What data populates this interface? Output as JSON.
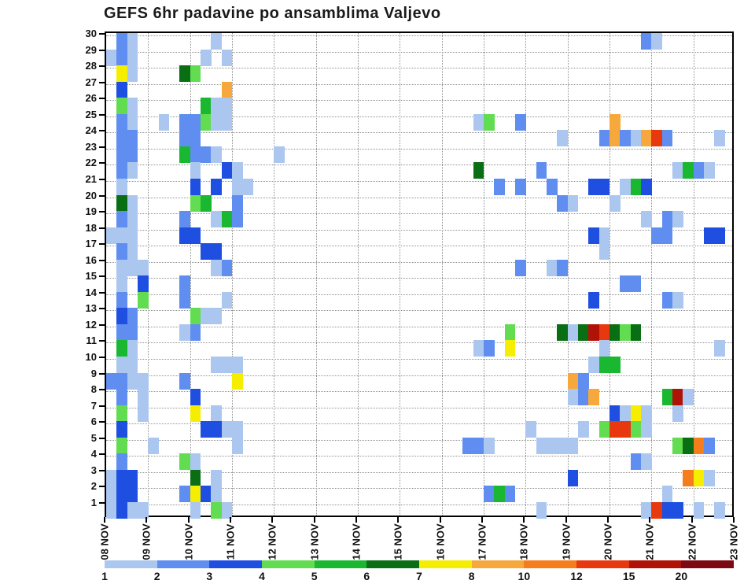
{
  "chart_data": {
    "type": "heatmap",
    "title": "GEFS 6hr padavine po ansamblima Valjevo",
    "subtitle": "",
    "x_axis": {
      "tick_labels": [
        "08 NOV",
        "09 NOV",
        "10 NOV",
        "11 NOV",
        "12 NOV",
        "13 NOV",
        "14 NOV",
        "15 NOV",
        "16 NOV",
        "17 NOV",
        "18 NOV",
        "19 NOV",
        "20 NOV",
        "21 NOV",
        "22 NOV",
        "23 NOV"
      ],
      "columns_per_day": 4,
      "total_columns": 60
    },
    "y_axis": {
      "tick_labels": [
        "30",
        "29",
        "28",
        "27",
        "26",
        "25",
        "24",
        "23",
        "22",
        "21",
        "20",
        "19",
        "18",
        "17",
        "16",
        "15",
        "14",
        "13",
        "12",
        "11",
        "10",
        "9",
        "8",
        "7",
        "6",
        "5",
        "4",
        "3",
        "2",
        "1"
      ]
    },
    "legend": {
      "labels": [
        "1",
        "2",
        "3",
        "4",
        "5",
        "6",
        "7",
        "8",
        "10",
        "12",
        "15",
        "20"
      ],
      "colors": [
        "#abc7f0",
        "#5f8ef0",
        "#1e4fe0",
        "#62dc50",
        "#1ab830",
        "#0a6e14",
        "#f6ee00",
        "#f6a83c",
        "#f67d1c",
        "#e8380e",
        "#b01208",
        "#7d0a12"
      ]
    },
    "palette": {
      "L": "#abc7f0",
      "M": "#5f8ef0",
      "S": "#1e4fe0",
      "G1": "#62dc50",
      "G2": "#1ab830",
      "G3": "#0a6e14",
      "Y": "#f6ee00",
      "O1": "#f6a83c",
      "O2": "#f67d1c",
      "R1": "#e8380e",
      "R2": "#b01208",
      "R3": "#7d0a12"
    },
    "cells": [
      [
        30,
        1,
        "M"
      ],
      [
        30,
        2,
        "L"
      ],
      [
        30,
        10,
        "L"
      ],
      [
        30,
        51,
        "M"
      ],
      [
        30,
        52,
        "L"
      ],
      [
        29,
        0,
        "L"
      ],
      [
        29,
        1,
        "M"
      ],
      [
        29,
        2,
        "L"
      ],
      [
        29,
        9,
        "L"
      ],
      [
        29,
        11,
        "L"
      ],
      [
        28,
        1,
        "Y"
      ],
      [
        28,
        2,
        "L"
      ],
      [
        28,
        7,
        "G3"
      ],
      [
        28,
        8,
        "G1"
      ],
      [
        27,
        1,
        "S"
      ],
      [
        27,
        11,
        "O1"
      ],
      [
        26,
        1,
        "G1"
      ],
      [
        26,
        2,
        "L"
      ],
      [
        26,
        9,
        "G2"
      ],
      [
        26,
        10,
        "L"
      ],
      [
        26,
        11,
        "L"
      ],
      [
        25,
        1,
        "M"
      ],
      [
        25,
        2,
        "L"
      ],
      [
        25,
        5,
        "L"
      ],
      [
        25,
        7,
        "M"
      ],
      [
        25,
        8,
        "M"
      ],
      [
        25,
        9,
        "G1"
      ],
      [
        25,
        10,
        "L"
      ],
      [
        25,
        11,
        "L"
      ],
      [
        25,
        35,
        "L"
      ],
      [
        25,
        36,
        "G1"
      ],
      [
        25,
        39,
        "M"
      ],
      [
        25,
        48,
        "O1"
      ],
      [
        24,
        1,
        "M"
      ],
      [
        24,
        2,
        "M"
      ],
      [
        24,
        7,
        "M"
      ],
      [
        24,
        8,
        "M"
      ],
      [
        24,
        43,
        "L"
      ],
      [
        24,
        47,
        "M"
      ],
      [
        24,
        48,
        "O1"
      ],
      [
        24,
        49,
        "M"
      ],
      [
        24,
        50,
        "L"
      ],
      [
        24,
        51,
        "O1"
      ],
      [
        24,
        52,
        "R1"
      ],
      [
        24,
        53,
        "M"
      ],
      [
        24,
        58,
        "L"
      ],
      [
        23,
        1,
        "M"
      ],
      [
        23,
        2,
        "M"
      ],
      [
        23,
        7,
        "G2"
      ],
      [
        23,
        8,
        "M"
      ],
      [
        23,
        9,
        "M"
      ],
      [
        23,
        10,
        "L"
      ],
      [
        23,
        16,
        "L"
      ],
      [
        22,
        1,
        "M"
      ],
      [
        22,
        2,
        "L"
      ],
      [
        22,
        8,
        "L"
      ],
      [
        22,
        11,
        "S"
      ],
      [
        22,
        12,
        "L"
      ],
      [
        22,
        35,
        "G3"
      ],
      [
        22,
        41,
        "M"
      ],
      [
        22,
        54,
        "L"
      ],
      [
        22,
        55,
        "G2"
      ],
      [
        22,
        56,
        "M"
      ],
      [
        22,
        57,
        "L"
      ],
      [
        21,
        1,
        "L"
      ],
      [
        21,
        8,
        "S"
      ],
      [
        21,
        10,
        "S"
      ],
      [
        21,
        12,
        "L"
      ],
      [
        21,
        13,
        "L"
      ],
      [
        21,
        37,
        "M"
      ],
      [
        21,
        39,
        "M"
      ],
      [
        21,
        42,
        "M"
      ],
      [
        21,
        46,
        "S"
      ],
      [
        21,
        47,
        "S"
      ],
      [
        21,
        49,
        "L"
      ],
      [
        21,
        50,
        "G2"
      ],
      [
        21,
        51,
        "S"
      ],
      [
        20,
        1,
        "G3"
      ],
      [
        20,
        2,
        "L"
      ],
      [
        20,
        8,
        "G1"
      ],
      [
        20,
        9,
        "G2"
      ],
      [
        20,
        12,
        "M"
      ],
      [
        20,
        43,
        "M"
      ],
      [
        20,
        44,
        "L"
      ],
      [
        20,
        48,
        "L"
      ],
      [
        19,
        1,
        "M"
      ],
      [
        19,
        2,
        "L"
      ],
      [
        19,
        7,
        "M"
      ],
      [
        19,
        10,
        "L"
      ],
      [
        19,
        11,
        "G2"
      ],
      [
        19,
        12,
        "M"
      ],
      [
        19,
        51,
        "L"
      ],
      [
        19,
        53,
        "M"
      ],
      [
        19,
        54,
        "L"
      ],
      [
        18,
        0,
        "L"
      ],
      [
        18,
        1,
        "L"
      ],
      [
        18,
        2,
        "L"
      ],
      [
        18,
        7,
        "S"
      ],
      [
        18,
        8,
        "S"
      ],
      [
        18,
        46,
        "S"
      ],
      [
        18,
        47,
        "L"
      ],
      [
        18,
        52,
        "M"
      ],
      [
        18,
        53,
        "M"
      ],
      [
        18,
        57,
        "S"
      ],
      [
        18,
        58,
        "S"
      ],
      [
        17,
        1,
        "M"
      ],
      [
        17,
        2,
        "L"
      ],
      [
        17,
        9,
        "S"
      ],
      [
        17,
        10,
        "S"
      ],
      [
        17,
        47,
        "L"
      ],
      [
        16,
        1,
        "L"
      ],
      [
        16,
        2,
        "L"
      ],
      [
        16,
        3,
        "L"
      ],
      [
        16,
        10,
        "L"
      ],
      [
        16,
        11,
        "M"
      ],
      [
        16,
        39,
        "M"
      ],
      [
        16,
        42,
        "L"
      ],
      [
        16,
        43,
        "M"
      ],
      [
        15,
        1,
        "L"
      ],
      [
        15,
        3,
        "S"
      ],
      [
        15,
        7,
        "M"
      ],
      [
        15,
        49,
        "M"
      ],
      [
        15,
        50,
        "M"
      ],
      [
        14,
        1,
        "M"
      ],
      [
        14,
        3,
        "G1"
      ],
      [
        14,
        7,
        "M"
      ],
      [
        14,
        11,
        "L"
      ],
      [
        14,
        46,
        "S"
      ],
      [
        14,
        53,
        "M"
      ],
      [
        14,
        54,
        "L"
      ],
      [
        13,
        1,
        "S"
      ],
      [
        13,
        2,
        "M"
      ],
      [
        13,
        8,
        "G1"
      ],
      [
        13,
        9,
        "L"
      ],
      [
        13,
        10,
        "L"
      ],
      [
        12,
        1,
        "M"
      ],
      [
        12,
        2,
        "M"
      ],
      [
        12,
        7,
        "L"
      ],
      [
        12,
        8,
        "M"
      ],
      [
        12,
        38,
        "G1"
      ],
      [
        12,
        43,
        "G3"
      ],
      [
        12,
        44,
        "L"
      ],
      [
        12,
        45,
        "G3"
      ],
      [
        12,
        46,
        "R2"
      ],
      [
        12,
        47,
        "R1"
      ],
      [
        12,
        48,
        "G3"
      ],
      [
        12,
        49,
        "G1"
      ],
      [
        12,
        50,
        "G3"
      ],
      [
        11,
        1,
        "G2"
      ],
      [
        11,
        2,
        "L"
      ],
      [
        11,
        35,
        "L"
      ],
      [
        11,
        36,
        "M"
      ],
      [
        11,
        38,
        "Y"
      ],
      [
        11,
        47,
        "L"
      ],
      [
        11,
        58,
        "L"
      ],
      [
        10,
        1,
        "L"
      ],
      [
        10,
        2,
        "L"
      ],
      [
        10,
        10,
        "L"
      ],
      [
        10,
        11,
        "L"
      ],
      [
        10,
        12,
        "L"
      ],
      [
        10,
        46,
        "L"
      ],
      [
        10,
        47,
        "G2"
      ],
      [
        10,
        48,
        "G2"
      ],
      [
        9,
        0,
        "M"
      ],
      [
        9,
        1,
        "M"
      ],
      [
        9,
        2,
        "L"
      ],
      [
        9,
        3,
        "L"
      ],
      [
        9,
        7,
        "M"
      ],
      [
        9,
        12,
        "Y"
      ],
      [
        9,
        44,
        "O1"
      ],
      [
        9,
        45,
        "M"
      ],
      [
        8,
        1,
        "M"
      ],
      [
        8,
        3,
        "L"
      ],
      [
        8,
        8,
        "S"
      ],
      [
        8,
        44,
        "L"
      ],
      [
        8,
        45,
        "M"
      ],
      [
        8,
        46,
        "O1"
      ],
      [
        8,
        53,
        "G2"
      ],
      [
        8,
        54,
        "R2"
      ],
      [
        8,
        55,
        "L"
      ],
      [
        7,
        1,
        "G1"
      ],
      [
        7,
        3,
        "L"
      ],
      [
        7,
        8,
        "Y"
      ],
      [
        7,
        10,
        "L"
      ],
      [
        7,
        48,
        "S"
      ],
      [
        7,
        49,
        "L"
      ],
      [
        7,
        50,
        "Y"
      ],
      [
        7,
        51,
        "L"
      ],
      [
        7,
        54,
        "L"
      ],
      [
        6,
        1,
        "S"
      ],
      [
        6,
        9,
        "S"
      ],
      [
        6,
        10,
        "S"
      ],
      [
        6,
        11,
        "L"
      ],
      [
        6,
        12,
        "L"
      ],
      [
        6,
        40,
        "L"
      ],
      [
        6,
        45,
        "L"
      ],
      [
        6,
        47,
        "G1"
      ],
      [
        6,
        48,
        "R1"
      ],
      [
        6,
        49,
        "R1"
      ],
      [
        6,
        50,
        "G1"
      ],
      [
        6,
        51,
        "L"
      ],
      [
        5,
        1,
        "G1"
      ],
      [
        5,
        4,
        "L"
      ],
      [
        5,
        12,
        "L"
      ],
      [
        5,
        34,
        "M"
      ],
      [
        5,
        35,
        "M"
      ],
      [
        5,
        36,
        "L"
      ],
      [
        5,
        41,
        "L"
      ],
      [
        5,
        42,
        "L"
      ],
      [
        5,
        43,
        "L"
      ],
      [
        5,
        44,
        "L"
      ],
      [
        5,
        54,
        "G1"
      ],
      [
        5,
        55,
        "G3"
      ],
      [
        5,
        56,
        "O2"
      ],
      [
        5,
        57,
        "M"
      ],
      [
        4,
        1,
        "M"
      ],
      [
        4,
        7,
        "G1"
      ],
      [
        4,
        8,
        "L"
      ],
      [
        4,
        50,
        "M"
      ],
      [
        4,
        51,
        "L"
      ],
      [
        3,
        0,
        "L"
      ],
      [
        3,
        1,
        "S"
      ],
      [
        3,
        2,
        "S"
      ],
      [
        3,
        8,
        "G3"
      ],
      [
        3,
        10,
        "L"
      ],
      [
        3,
        44,
        "S"
      ],
      [
        3,
        55,
        "O2"
      ],
      [
        3,
        56,
        "Y"
      ],
      [
        3,
        57,
        "L"
      ],
      [
        2,
        0,
        "L"
      ],
      [
        2,
        1,
        "S"
      ],
      [
        2,
        2,
        "S"
      ],
      [
        2,
        7,
        "M"
      ],
      [
        2,
        8,
        "Y"
      ],
      [
        2,
        9,
        "S"
      ],
      [
        2,
        10,
        "L"
      ],
      [
        2,
        36,
        "M"
      ],
      [
        2,
        37,
        "G2"
      ],
      [
        2,
        38,
        "M"
      ],
      [
        2,
        53,
        "L"
      ],
      [
        1,
        0,
        "L"
      ],
      [
        1,
        1,
        "S"
      ],
      [
        1,
        2,
        "L"
      ],
      [
        1,
        3,
        "L"
      ],
      [
        1,
        8,
        "L"
      ],
      [
        1,
        10,
        "G1"
      ],
      [
        1,
        11,
        "L"
      ],
      [
        1,
        41,
        "L"
      ],
      [
        1,
        51,
        "L"
      ],
      [
        1,
        52,
        "R1"
      ],
      [
        1,
        53,
        "S"
      ],
      [
        1,
        54,
        "S"
      ],
      [
        1,
        56,
        "L"
      ],
      [
        1,
        58,
        "L"
      ]
    ]
  }
}
